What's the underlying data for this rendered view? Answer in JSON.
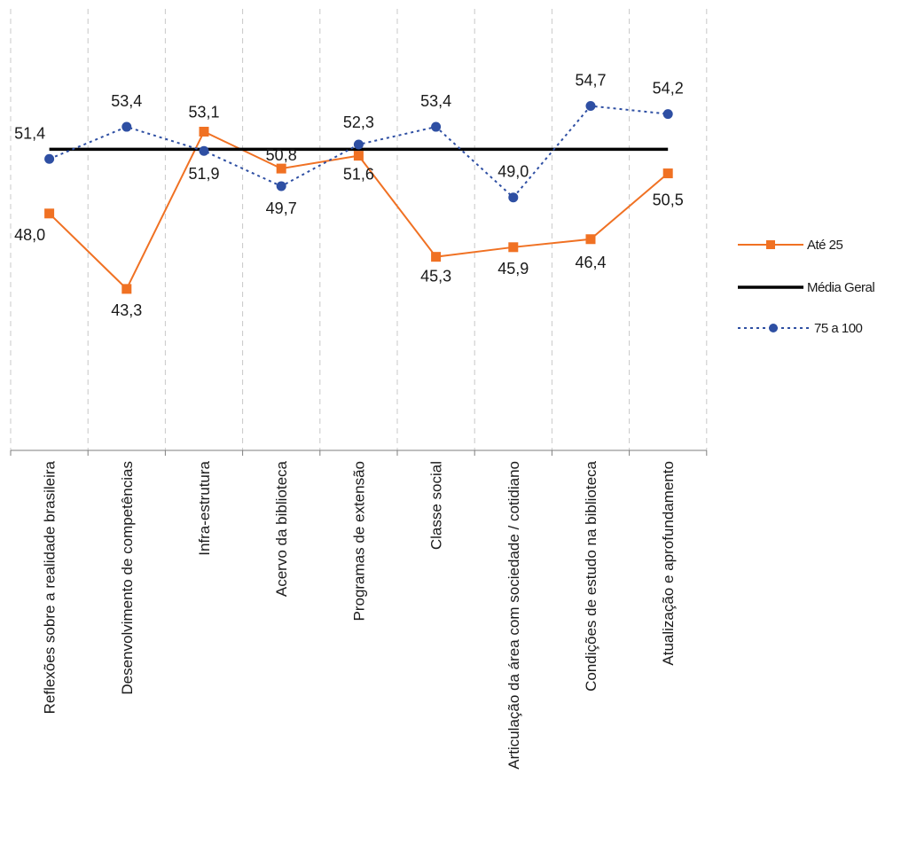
{
  "chart_data": {
    "type": "line",
    "title": "",
    "xlabel": "",
    "ylabel": "",
    "ylim": [
      34,
      56
    ],
    "grid": "vertical dashed lines between categories",
    "legend_position": "right",
    "categories": [
      "Reflexões sobre a realidade brasileira",
      "Desenvolvimento de competências",
      "Infra-estrutura",
      "Acervo da biblioteca",
      "Programas de extensão",
      "Classe social",
      "Articulação da área com sociedade / cotidiano",
      "Condições de estudo na biblioteca",
      "Atualização e aprofundamento"
    ],
    "series": [
      {
        "name": "Até 25",
        "color": "#f07123",
        "marker": "square",
        "line_style": "solid",
        "values": [
          48.0,
          43.3,
          53.1,
          50.8,
          51.6,
          45.3,
          45.9,
          46.4,
          50.5
        ],
        "labels": [
          "48,0",
          "43,3",
          "53,1",
          "50,8",
          "51,6",
          "45,3",
          "45,9",
          "46,4",
          "50,5"
        ]
      },
      {
        "name": "Média Geral",
        "color": "#000000",
        "marker": "none",
        "line_style": "solid",
        "values": [
          52.0,
          52.0,
          52.0,
          52.0,
          52.0,
          52.0,
          52.0,
          52.0,
          52.0
        ],
        "labels": []
      },
      {
        "name": "75 a 100",
        "color": "#2e4fa3",
        "marker": "circle",
        "line_style": "dotted",
        "values": [
          51.4,
          53.4,
          51.9,
          49.7,
          52.3,
          53.4,
          49.0,
          54.7,
          54.2
        ],
        "labels": [
          "51,4",
          "53,4",
          "51,9",
          "49,7",
          "52,3",
          "53,4",
          "49,0",
          "54,7",
          "54,2"
        ]
      }
    ]
  }
}
